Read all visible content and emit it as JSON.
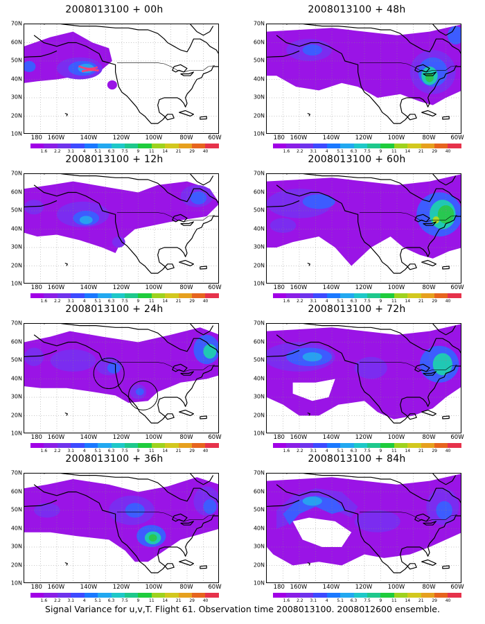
{
  "panels": [
    {
      "title": "2008013100 + 00h",
      "col": 0,
      "row": 0,
      "id": "00h"
    },
    {
      "title": "2008013100 + 12h",
      "col": 0,
      "row": 1,
      "id": "12h"
    },
    {
      "title": "2008013100 + 24h",
      "col": 0,
      "row": 2,
      "id": "24h"
    },
    {
      "title": "2008013100 + 36h",
      "col": 0,
      "row": 3,
      "id": "36h"
    },
    {
      "title": "2008013100 + 48h",
      "col": 1,
      "row": 0,
      "id": "48h"
    },
    {
      "title": "2008013100 + 60h",
      "col": 1,
      "row": 1,
      "id": "60h"
    },
    {
      "title": "2008013100 + 72h",
      "col": 1,
      "row": 2,
      "id": "72h"
    },
    {
      "title": "2008013100 + 84h",
      "col": 1,
      "row": 3,
      "id": "84h"
    }
  ],
  "lat_labels": [
    "70N",
    "60N",
    "50N",
    "40N",
    "30N",
    "20N",
    "10N"
  ],
  "lon_labels": [
    "180",
    "160W",
    "140W",
    "120W",
    "100W",
    "80W",
    "60W"
  ],
  "colorbar": {
    "labels": [
      "1.6",
      "2.2",
      "3.1",
      "4",
      "5.1",
      "6.3",
      "7.5",
      "9",
      "11",
      "14",
      "21",
      "29",
      "40"
    ],
    "colors": [
      "#a100e6",
      "#8a1ee6",
      "#6f33ec",
      "#3d4aff",
      "#1a78ff",
      "#22a8f0",
      "#1ec8c8",
      "#1ec88c",
      "#1ecc3c",
      "#9ed21e",
      "#d2c81e",
      "#e6a01e",
      "#e6641e",
      "#e6324b"
    ]
  },
  "footer": "Signal Variance for u,v,T. Flight 61. Observation time 2008013100. 2008012600 ensemble.",
  "colors": {
    "purple": "#9a14e6",
    "violet": "#7b2cf0",
    "blue": "#3d5cff",
    "lightblue": "#28a0f0",
    "teal": "#20c8b4",
    "green": "#28c850",
    "yellow_green": "#a8d828",
    "obs_points": "#ff3c78"
  }
}
